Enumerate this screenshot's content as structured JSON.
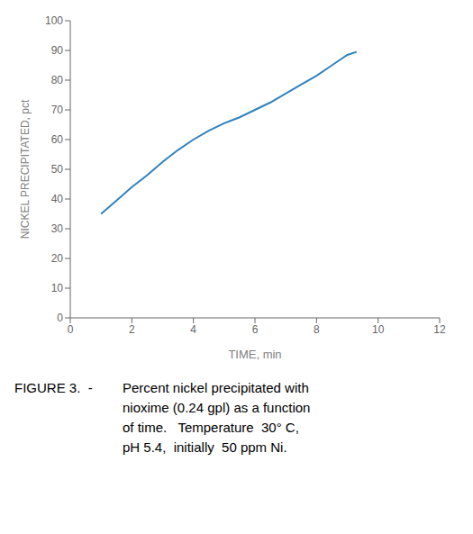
{
  "chart_data": {
    "type": "line",
    "x": [
      1.0,
      1.5,
      2.0,
      2.5,
      3.0,
      3.5,
      4.0,
      4.5,
      5.0,
      5.5,
      6.0,
      6.5,
      7.0,
      7.5,
      8.0,
      8.5,
      9.0,
      9.3
    ],
    "values": [
      35.0,
      39.5,
      44.0,
      48.0,
      52.5,
      56.5,
      60.0,
      63.0,
      65.5,
      67.5,
      70.0,
      72.5,
      75.5,
      78.5,
      81.5,
      85.0,
      88.5,
      89.5
    ],
    "xlim": [
      0,
      12
    ],
    "ylim": [
      0,
      100
    ],
    "xticks": [
      0,
      2,
      4,
      6,
      8,
      10,
      12
    ],
    "yticks": [
      0,
      10,
      20,
      30,
      40,
      50,
      60,
      70,
      80,
      90,
      100
    ],
    "xlabel": "TIME, min",
    "ylabel": "NICKEL PRECIPITATED, pct",
    "grid": false,
    "annotations": [
      "FIGURE 3.  - ",
      "Percent nickel precipitated with",
      "nioxime (0.24 gpl) as a function",
      "of time.   Temperature  30° C,",
      "pH 5.4,  initially  50 ppm Ni."
    ]
  }
}
